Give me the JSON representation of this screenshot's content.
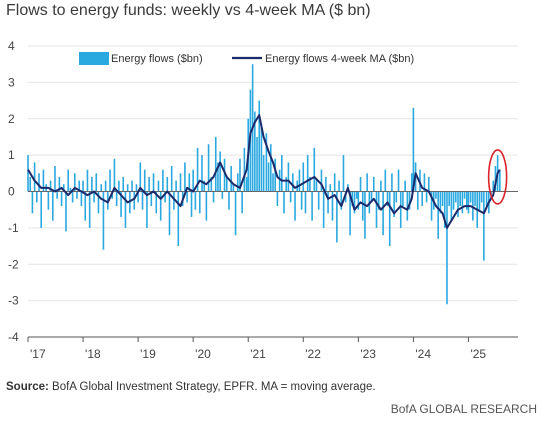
{
  "chart_data": {
    "type": "bar",
    "title": "Flows to energy funds: weekly vs 4-week MA ($ bn)",
    "ylim": [
      -4,
      4
    ],
    "yticks": [
      4,
      3,
      2,
      1,
      0,
      -1,
      -2,
      -3,
      -4
    ],
    "xlim": [
      2017.0,
      2025.9
    ],
    "xticks": [
      {
        "label": "'17",
        "value": 2017.0
      },
      {
        "label": "'18",
        "value": 2018.0
      },
      {
        "label": "'19",
        "value": 2019.0
      },
      {
        "label": "'20",
        "value": 2020.0
      },
      {
        "label": "'21",
        "value": 2021.0
      },
      {
        "label": "'22",
        "value": 2022.0
      },
      {
        "label": "'23",
        "value": 2023.0
      },
      {
        "label": "'24",
        "value": 2024.0
      },
      {
        "label": "'25",
        "value": 2025.0
      }
    ],
    "legend_position": "top-center",
    "series": [
      {
        "name": "Energy flows ($bn)",
        "kind": "bar",
        "color": "#2aa8e0",
        "points": [
          [
            2017.0,
            1.0
          ],
          [
            2017.04,
            0.4
          ],
          [
            2017.08,
            -0.6
          ],
          [
            2017.12,
            0.8
          ],
          [
            2017.16,
            -0.3
          ],
          [
            2017.2,
            0.5
          ],
          [
            2017.24,
            -1.0
          ],
          [
            2017.28,
            0.6
          ],
          [
            2017.33,
            0.2
          ],
          [
            2017.37,
            -0.5
          ],
          [
            2017.41,
            0.3
          ],
          [
            2017.45,
            -0.8
          ],
          [
            2017.49,
            0.7
          ],
          [
            2017.53,
            -0.2
          ],
          [
            2017.57,
            0.4
          ],
          [
            2017.61,
            -0.4
          ],
          [
            2017.65,
            0.2
          ],
          [
            2017.69,
            -1.1
          ],
          [
            2017.73,
            0.6
          ],
          [
            2017.77,
            0.1
          ],
          [
            2017.81,
            -0.3
          ],
          [
            2017.85,
            0.5
          ],
          [
            2017.89,
            -0.2
          ],
          [
            2017.93,
            0.3
          ],
          [
            2017.97,
            -0.4
          ],
          [
            2018.0,
            0.3
          ],
          [
            2018.04,
            -0.8
          ],
          [
            2018.08,
            0.6
          ],
          [
            2018.12,
            -1.0
          ],
          [
            2018.16,
            0.4
          ],
          [
            2018.2,
            -0.3
          ],
          [
            2018.24,
            0.5
          ],
          [
            2018.28,
            -0.6
          ],
          [
            2018.33,
            0.2
          ],
          [
            2018.37,
            -1.6
          ],
          [
            2018.41,
            0.3
          ],
          [
            2018.45,
            -0.5
          ],
          [
            2018.49,
            0.6
          ],
          [
            2018.53,
            -0.2
          ],
          [
            2018.57,
            0.9
          ],
          [
            2018.61,
            -0.4
          ],
          [
            2018.65,
            0.3
          ],
          [
            2018.69,
            -0.7
          ],
          [
            2018.73,
            0.4
          ],
          [
            2018.77,
            -1.0
          ],
          [
            2018.81,
            0.2
          ],
          [
            2018.85,
            -0.6
          ],
          [
            2018.89,
            0.3
          ],
          [
            2018.93,
            -0.5
          ],
          [
            2018.97,
            0.2
          ],
          [
            2019.0,
            -0.3
          ],
          [
            2019.04,
            0.8
          ],
          [
            2019.08,
            -0.5
          ],
          [
            2019.12,
            0.6
          ],
          [
            2019.16,
            -1.0
          ],
          [
            2019.2,
            0.4
          ],
          [
            2019.24,
            -0.4
          ],
          [
            2019.28,
            0.5
          ],
          [
            2019.33,
            -0.6
          ],
          [
            2019.37,
            0.3
          ],
          [
            2019.41,
            -0.8
          ],
          [
            2019.45,
            0.6
          ],
          [
            2019.49,
            -0.3
          ],
          [
            2019.53,
            0.4
          ],
          [
            2019.57,
            -1.2
          ],
          [
            2019.61,
            0.7
          ],
          [
            2019.65,
            -0.5
          ],
          [
            2019.69,
            0.3
          ],
          [
            2019.73,
            -1.5
          ],
          [
            2019.77,
            0.5
          ],
          [
            2019.81,
            -0.4
          ],
          [
            2019.85,
            0.8
          ],
          [
            2019.89,
            -0.3
          ],
          [
            2019.93,
            0.5
          ],
          [
            2019.97,
            -0.7
          ],
          [
            2020.0,
            0.6
          ],
          [
            2020.04,
            -0.5
          ],
          [
            2020.08,
            1.2
          ],
          [
            2020.12,
            -0.6
          ],
          [
            2020.16,
            1.0
          ],
          [
            2020.2,
            0.3
          ],
          [
            2020.24,
            -0.8
          ],
          [
            2020.28,
            1.3
          ],
          [
            2020.33,
            0.4
          ],
          [
            2020.37,
            -0.3
          ],
          [
            2020.41,
            1.5
          ],
          [
            2020.45,
            0.8
          ],
          [
            2020.49,
            1.1
          ],
          [
            2020.53,
            -0.2
          ],
          [
            2020.57,
            0.9
          ],
          [
            2020.61,
            0.4
          ],
          [
            2020.65,
            -0.5
          ],
          [
            2020.69,
            0.7
          ],
          [
            2020.73,
            0.2
          ],
          [
            2020.77,
            -1.2
          ],
          [
            2020.81,
            0.5
          ],
          [
            2020.85,
            0.9
          ],
          [
            2020.89,
            -0.6
          ],
          [
            2020.93,
            1.2
          ],
          [
            2020.97,
            0.4
          ],
          [
            2021.0,
            2.0
          ],
          [
            2021.04,
            2.8
          ],
          [
            2021.08,
            3.5
          ],
          [
            2021.12,
            2.2
          ],
          [
            2021.16,
            1.5
          ],
          [
            2021.2,
            2.5
          ],
          [
            2021.24,
            1.8
          ],
          [
            2021.28,
            1.0
          ],
          [
            2021.33,
            1.6
          ],
          [
            2021.37,
            0.8
          ],
          [
            2021.41,
            1.3
          ],
          [
            2021.45,
            0.5
          ],
          [
            2021.49,
            0.9
          ],
          [
            2021.53,
            -0.4
          ],
          [
            2021.57,
            0.6
          ],
          [
            2021.61,
            1.0
          ],
          [
            2021.65,
            -0.6
          ],
          [
            2021.69,
            0.4
          ],
          [
            2021.73,
            0.8
          ],
          [
            2021.77,
            -0.3
          ],
          [
            2021.81,
            0.5
          ],
          [
            2021.85,
            -0.8
          ],
          [
            2021.89,
            0.3
          ],
          [
            2021.93,
            0.6
          ],
          [
            2021.97,
            -0.5
          ],
          [
            2022.0,
            0.8
          ],
          [
            2022.04,
            -0.6
          ],
          [
            2022.08,
            1.0
          ],
          [
            2022.12,
            0.4
          ],
          [
            2022.16,
            -0.8
          ],
          [
            2022.2,
            1.2
          ],
          [
            2022.24,
            0.3
          ],
          [
            2022.28,
            -0.5
          ],
          [
            2022.33,
            0.6
          ],
          [
            2022.37,
            -1.0
          ],
          [
            2022.41,
            0.4
          ],
          [
            2022.45,
            -0.6
          ],
          [
            2022.49,
            0.2
          ],
          [
            2022.53,
            -0.8
          ],
          [
            2022.57,
            0.5
          ],
          [
            2022.61,
            -1.4
          ],
          [
            2022.65,
            0.3
          ],
          [
            2022.69,
            -0.5
          ],
          [
            2022.73,
            1.0
          ],
          [
            2022.77,
            -0.3
          ],
          [
            2022.81,
            0.2
          ],
          [
            2022.85,
            -1.2
          ],
          [
            2022.89,
            -0.4
          ],
          [
            2022.93,
            -0.6
          ],
          [
            2022.97,
            -0.2
          ],
          [
            2023.0,
            -0.5
          ],
          [
            2023.04,
            0.4
          ],
          [
            2023.08,
            -0.8
          ],
          [
            2023.12,
            -1.3
          ],
          [
            2023.16,
            0.5
          ],
          [
            2023.2,
            -0.6
          ],
          [
            2023.24,
            -0.3
          ],
          [
            2023.28,
            0.4
          ],
          [
            2023.33,
            -1.0
          ],
          [
            2023.37,
            -0.5
          ],
          [
            2023.41,
            0.3
          ],
          [
            2023.45,
            -1.2
          ],
          [
            2023.49,
            0.6
          ],
          [
            2023.53,
            -0.4
          ],
          [
            2023.57,
            -1.5
          ],
          [
            2023.61,
            0.5
          ],
          [
            2023.65,
            -0.7
          ],
          [
            2023.69,
            -0.3
          ],
          [
            2023.73,
            0.6
          ],
          [
            2023.77,
            -1.0
          ],
          [
            2023.81,
            -0.4
          ],
          [
            2023.85,
            0.3
          ],
          [
            2023.89,
            -0.8
          ],
          [
            2023.93,
            -0.5
          ],
          [
            2023.97,
            0.5
          ],
          [
            2024.0,
            2.3
          ],
          [
            2024.04,
            0.8
          ],
          [
            2024.08,
            -0.5
          ],
          [
            2024.12,
            0.6
          ],
          [
            2024.16,
            -0.4
          ],
          [
            2024.2,
            0.5
          ],
          [
            2024.24,
            -0.3
          ],
          [
            2024.28,
            0.4
          ],
          [
            2024.33,
            -0.8
          ],
          [
            2024.37,
            -0.5
          ],
          [
            2024.41,
            -0.2
          ],
          [
            2024.45,
            -1.3
          ],
          [
            2024.49,
            -0.6
          ],
          [
            2024.53,
            -0.4
          ],
          [
            2024.57,
            -1.0
          ],
          [
            2024.61,
            -3.1
          ],
          [
            2024.65,
            -0.4
          ],
          [
            2024.69,
            -0.8
          ],
          [
            2024.73,
            -0.5
          ],
          [
            2024.77,
            -0.3
          ],
          [
            2024.81,
            -0.7
          ],
          [
            2024.85,
            -0.4
          ],
          [
            2024.89,
            -0.6
          ],
          [
            2024.93,
            -0.2
          ],
          [
            2024.97,
            -0.5
          ],
          [
            2025.0,
            -0.6
          ],
          [
            2025.04,
            -0.3
          ],
          [
            2025.08,
            -0.8
          ],
          [
            2025.12,
            -0.4
          ],
          [
            2025.16,
            -1.0
          ],
          [
            2025.2,
            -0.5
          ],
          [
            2025.24,
            -0.3
          ],
          [
            2025.28,
            -1.9
          ],
          [
            2025.33,
            -0.4
          ],
          [
            2025.37,
            -0.6
          ],
          [
            2025.41,
            -0.2
          ],
          [
            2025.45,
            0.3
          ],
          [
            2025.49,
            0.7
          ],
          [
            2025.53,
            1.0
          ],
          [
            2025.57,
            0.6
          ]
        ]
      },
      {
        "name": "Energy flows 4-week MA ($bn)",
        "kind": "line",
        "color": "#1b2a6b",
        "points": [
          [
            2017.0,
            0.6
          ],
          [
            2017.12,
            0.3
          ],
          [
            2017.24,
            0.1
          ],
          [
            2017.37,
            0.1
          ],
          [
            2017.49,
            0.0
          ],
          [
            2017.61,
            0.1
          ],
          [
            2017.73,
            -0.1
          ],
          [
            2017.85,
            0.1
          ],
          [
            2017.97,
            0.0
          ],
          [
            2018.08,
            -0.1
          ],
          [
            2018.2,
            0.0
          ],
          [
            2018.33,
            -0.2
          ],
          [
            2018.45,
            -0.3
          ],
          [
            2018.57,
            0.1
          ],
          [
            2018.69,
            -0.1
          ],
          [
            2018.81,
            -0.3
          ],
          [
            2018.93,
            -0.2
          ],
          [
            2019.04,
            0.1
          ],
          [
            2019.16,
            -0.1
          ],
          [
            2019.28,
            0.0
          ],
          [
            2019.41,
            -0.2
          ],
          [
            2019.53,
            0.0
          ],
          [
            2019.65,
            -0.2
          ],
          [
            2019.77,
            -0.4
          ],
          [
            2019.89,
            0.1
          ],
          [
            2020.0,
            0.0
          ],
          [
            2020.12,
            0.3
          ],
          [
            2020.24,
            0.2
          ],
          [
            2020.37,
            0.4
          ],
          [
            2020.49,
            0.8
          ],
          [
            2020.61,
            0.4
          ],
          [
            2020.73,
            0.2
          ],
          [
            2020.85,
            0.1
          ],
          [
            2020.97,
            0.6
          ],
          [
            2021.04,
            1.6
          ],
          [
            2021.12,
            1.9
          ],
          [
            2021.2,
            2.1
          ],
          [
            2021.28,
            1.5
          ],
          [
            2021.37,
            1.1
          ],
          [
            2021.45,
            0.8
          ],
          [
            2021.53,
            0.4
          ],
          [
            2021.61,
            0.3
          ],
          [
            2021.73,
            0.3
          ],
          [
            2021.85,
            0.1
          ],
          [
            2021.97,
            0.2
          ],
          [
            2022.08,
            0.3
          ],
          [
            2022.2,
            0.4
          ],
          [
            2022.33,
            0.2
          ],
          [
            2022.45,
            -0.2
          ],
          [
            2022.57,
            -0.1
          ],
          [
            2022.69,
            -0.4
          ],
          [
            2022.81,
            0.1
          ],
          [
            2022.93,
            -0.5
          ],
          [
            2023.04,
            -0.3
          ],
          [
            2023.16,
            -0.4
          ],
          [
            2023.28,
            -0.2
          ],
          [
            2023.41,
            -0.5
          ],
          [
            2023.53,
            -0.3
          ],
          [
            2023.65,
            -0.6
          ],
          [
            2023.77,
            -0.4
          ],
          [
            2023.89,
            -0.5
          ],
          [
            2023.97,
            -0.2
          ],
          [
            2024.04,
            0.5
          ],
          [
            2024.16,
            0.1
          ],
          [
            2024.28,
            0.0
          ],
          [
            2024.41,
            -0.4
          ],
          [
            2024.53,
            -0.6
          ],
          [
            2024.61,
            -1.0
          ],
          [
            2024.69,
            -0.8
          ],
          [
            2024.81,
            -0.5
          ],
          [
            2024.93,
            -0.4
          ],
          [
            2025.04,
            -0.4
          ],
          [
            2025.16,
            -0.5
          ],
          [
            2025.28,
            -0.6
          ],
          [
            2025.37,
            -0.3
          ],
          [
            2025.45,
            -0.1
          ],
          [
            2025.49,
            0.2
          ],
          [
            2025.53,
            0.5
          ],
          [
            2025.57,
            0.6
          ]
        ]
      }
    ],
    "annotations": [
      {
        "type": "circle",
        "color": "#d9262c",
        "x": 2025.53,
        "y": 0.4
      }
    ]
  },
  "source_label": "Source:",
  "source_text": " BofA Global Investment Strategy, EPFR. MA = moving average.",
  "brand": "BofA GLOBAL RESEARCH"
}
